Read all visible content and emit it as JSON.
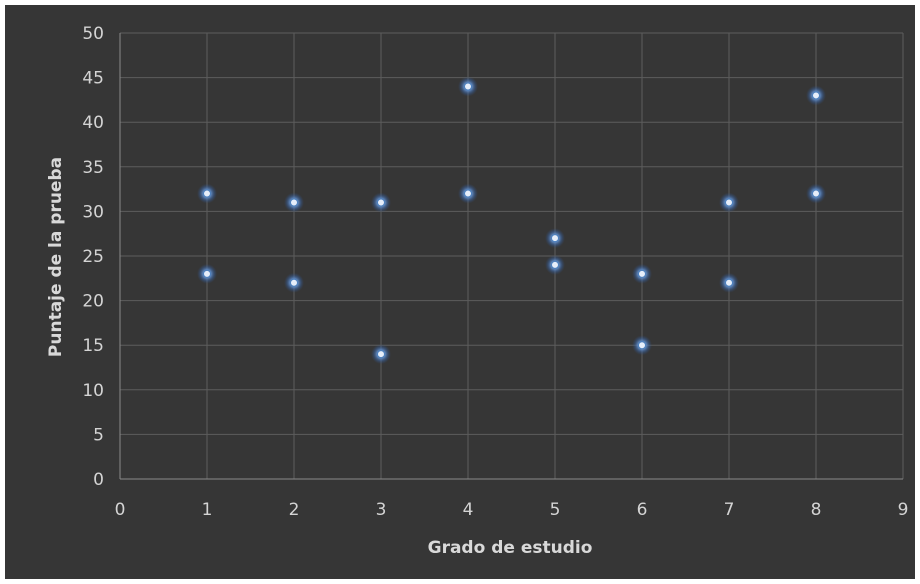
{
  "chart_data": {
    "type": "scatter",
    "title": "",
    "xlabel": "Grado de estudio",
    "ylabel": "Puntaje de la prueba",
    "xlim": [
      0,
      9
    ],
    "ylim": [
      0,
      50
    ],
    "x_ticks": [
      "0",
      "1",
      "2",
      "3",
      "4",
      "5",
      "6",
      "7",
      "8",
      "9"
    ],
    "y_ticks": [
      "0",
      "5",
      "10",
      "15",
      "20",
      "25",
      "30",
      "35",
      "40",
      "45",
      "50"
    ],
    "grid": true,
    "legend": "none",
    "background_color": "#363636",
    "marker_color": "#4f81bd",
    "series": [
      {
        "x": [
          1,
          1,
          2,
          2,
          3,
          3,
          4,
          4,
          5,
          5,
          6,
          6,
          7,
          7,
          8,
          8
        ],
        "y": [
          32,
          23,
          31,
          22,
          31,
          14,
          44,
          32,
          27,
          24,
          23,
          15,
          31,
          22,
          43,
          32
        ]
      }
    ]
  }
}
